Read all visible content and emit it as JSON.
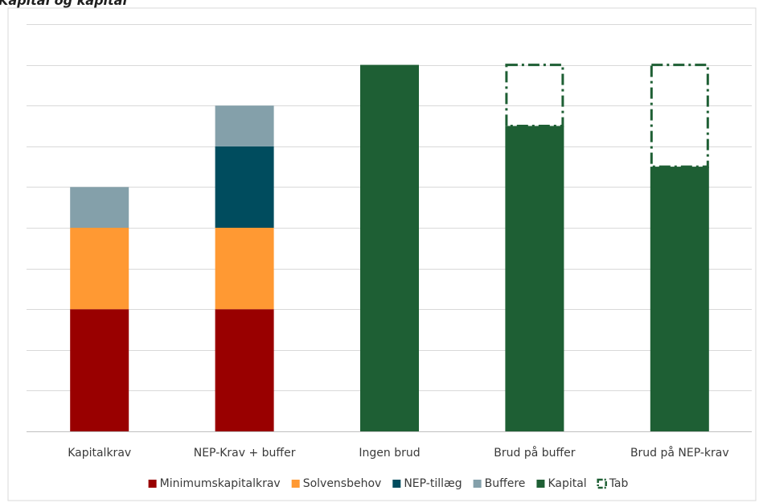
{
  "chart_data": {
    "type": "bar",
    "stacked": true,
    "title": "Kapital og kapital",
    "categories": [
      "Kapitalkrav",
      "NEP-Krav + buffer",
      "Ingen brud",
      "Brud på buffer",
      "Brud på NEP-krav"
    ],
    "series": [
      {
        "name": "Minimumskapitalkrav",
        "color": "#990000",
        "values": [
          3,
          3,
          0,
          0,
          0
        ]
      },
      {
        "name": "Solvensbehov",
        "color": "#ff9933",
        "values": [
          2,
          2,
          0,
          0,
          0
        ]
      },
      {
        "name": "NEP-tillæg",
        "color": "#004c5e",
        "values": [
          0,
          2,
          0,
          0,
          0
        ]
      },
      {
        "name": "Buffere",
        "color": "#84a0aa",
        "values": [
          1,
          1,
          0,
          0,
          0
        ]
      },
      {
        "name": "Kapital",
        "color": "#1e5f34",
        "values": [
          0,
          0,
          9,
          7.5,
          6.5
        ]
      },
      {
        "name": "Tab",
        "color": "#1e5f34",
        "style": "dash-dot-outline",
        "values": [
          0,
          0,
          0,
          1.5,
          2.5
        ]
      }
    ],
    "ylim": [
      0,
      10
    ],
    "grid": true,
    "legend": "bottom"
  }
}
